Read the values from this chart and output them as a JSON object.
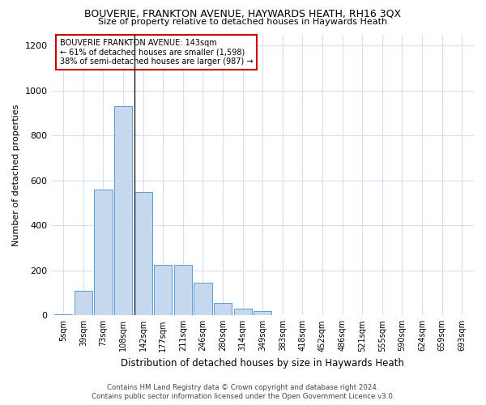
{
  "title": "BOUVERIE, FRANKTON AVENUE, HAYWARDS HEATH, RH16 3QX",
  "subtitle": "Size of property relative to detached houses in Haywards Heath",
  "xlabel": "Distribution of detached houses by size in Haywards Heath",
  "ylabel": "Number of detached properties",
  "annotation_line1": "BOUVERIE FRANKTON AVENUE: 143sqm",
  "annotation_line2": "← 61% of detached houses are smaller (1,598)",
  "annotation_line3": "38% of semi-detached houses are larger (987) →",
  "footer_line1": "Contains HM Land Registry data © Crown copyright and database right 2024.",
  "footer_line2": "Contains public sector information licensed under the Open Government Licence v3.0.",
  "bar_color": "#c5d8ed",
  "bar_edge_color": "#5b9bd5",
  "marker_line_color": "#1a1a1a",
  "annotation_box_color": "#ffffff",
  "annotation_box_edge": "#cc0000",
  "grid_color": "#d4dff0",
  "background_color": "#ffffff",
  "categories": [
    "5sqm",
    "39sqm",
    "73sqm",
    "108sqm",
    "142sqm",
    "177sqm",
    "211sqm",
    "246sqm",
    "280sqm",
    "314sqm",
    "349sqm",
    "383sqm",
    "418sqm",
    "452sqm",
    "486sqm",
    "521sqm",
    "555sqm",
    "590sqm",
    "624sqm",
    "659sqm",
    "693sqm"
  ],
  "values": [
    5,
    110,
    560,
    930,
    550,
    225,
    225,
    145,
    55,
    30,
    20,
    0,
    0,
    0,
    0,
    0,
    0,
    0,
    0,
    0,
    0
  ],
  "marker_bin_index": 4,
  "ylim": [
    0,
    1250
  ],
  "yticks": [
    0,
    200,
    400,
    600,
    800,
    1000,
    1200
  ]
}
